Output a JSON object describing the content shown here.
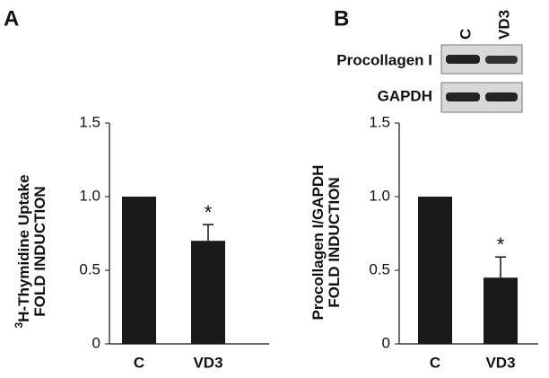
{
  "panels": [
    "A",
    "B"
  ],
  "blot": {
    "lanes": [
      "C",
      "VD3"
    ],
    "rows": [
      "Procollagen I",
      "GAPDH"
    ]
  },
  "chart_data": [
    {
      "type": "bar",
      "ylabel_superscript": "3",
      "ylabel": [
        "H-Thymidine Uptake",
        "FOLD INDUCTION"
      ],
      "categories": [
        "C",
        "VD3"
      ],
      "values": [
        1.0,
        0.7
      ],
      "errors": [
        null,
        0.11
      ],
      "significance": [
        null,
        "*"
      ],
      "color": "#1a1a1a",
      "ylim": [
        0,
        1.5
      ],
      "yticks": [
        0,
        0.5,
        {
          "value": 1,
          "label": "1.0"
        },
        1.5
      ]
    },
    {
      "type": "bar",
      "ylabel": [
        "Procollagen I/GAPDH",
        "FOLD INDUCTION"
      ],
      "categories": [
        "C",
        "VD3"
      ],
      "values": [
        1.0,
        0.45
      ],
      "errors": [
        null,
        0.14
      ],
      "significance": [
        null,
        "*"
      ],
      "color": "#1a1a1a",
      "ylim": [
        0,
        1.5
      ],
      "yticks": [
        0,
        0.5,
        {
          "value": 1,
          "label": "1.0"
        },
        1.5
      ]
    }
  ]
}
